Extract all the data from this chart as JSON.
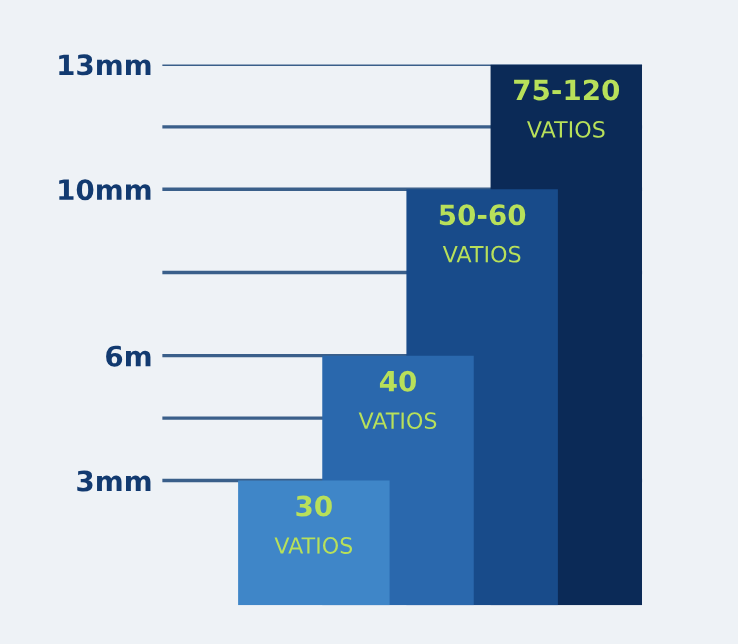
{
  "chart_data": {
    "type": "bar",
    "categories": [
      null,
      null,
      null,
      null
    ],
    "values": [
      3,
      6,
      10,
      13
    ],
    "colors": [
      "#3f86c8",
      "#2a68ad",
      "#184b8a",
      "#0b2a57"
    ],
    "annotations": [
      "30\nVATIOS",
      "40\nVATIOS",
      "50-60\nVATIOS",
      "75-120\nVATIOS"
    ],
    "ylim": [
      0,
      13
    ],
    "yticks": [
      {
        "value": 3,
        "label": "3mm"
      },
      {
        "value": 4.5,
        "label": null
      },
      {
        "value": 6,
        "label": "6m"
      },
      {
        "value": 8,
        "label": null
      },
      {
        "value": 10,
        "label": "10mm"
      },
      {
        "value": 11.5,
        "label": null
      },
      {
        "value": 13,
        "label": "13mm"
      }
    ],
    "grid": "y",
    "tick_labels": "y"
  }
}
